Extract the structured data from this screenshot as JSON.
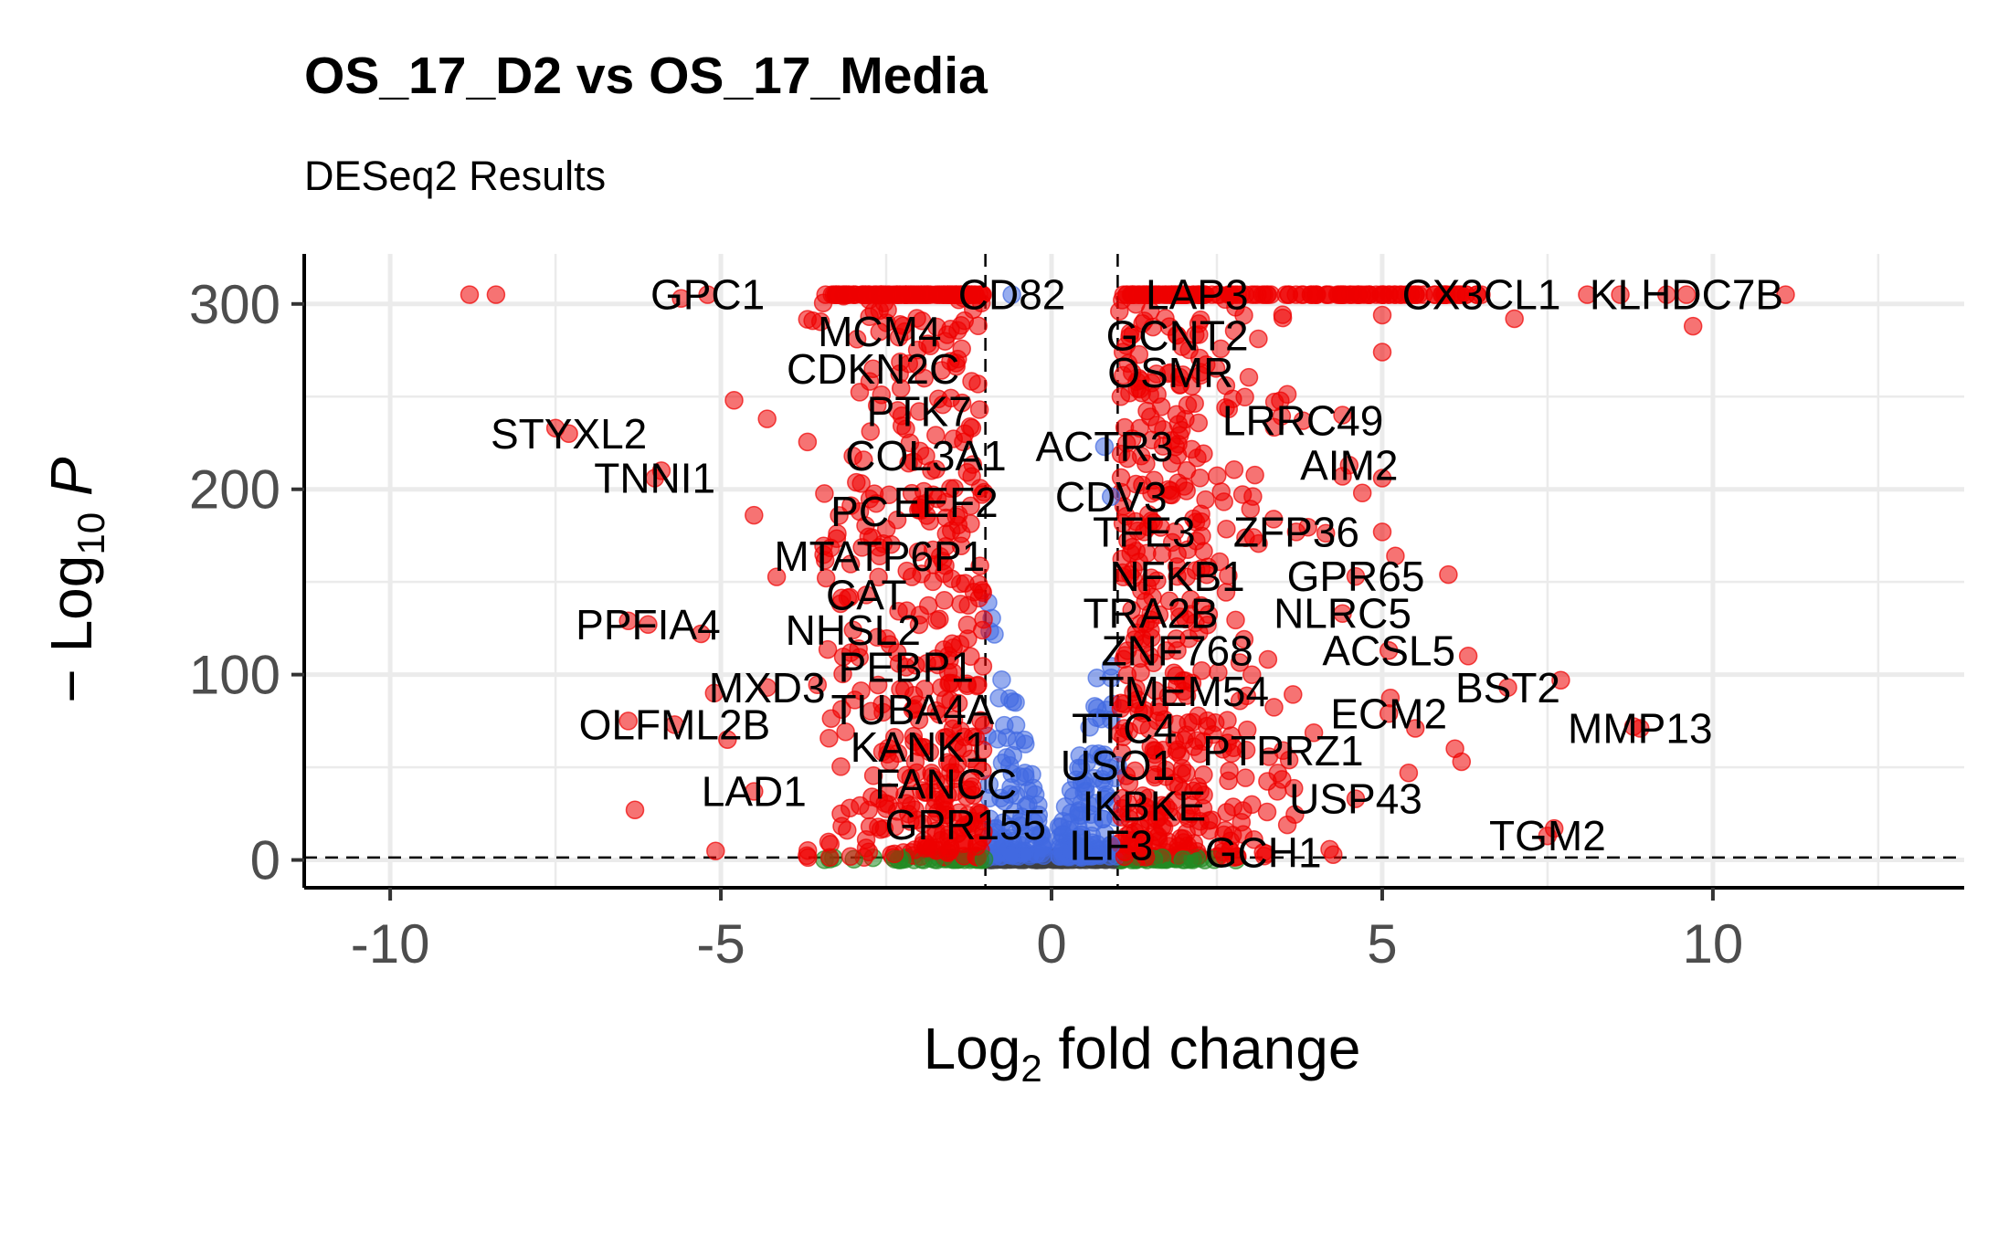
{
  "chart_data": {
    "type": "scatter",
    "title": "OS_17_D2 vs OS_17_Media",
    "subtitle": "DESeq2 Results",
    "xlabel": "Log2 fold change",
    "ylabel": "-Log10 P",
    "xlim": [
      -11.3,
      13.8
    ],
    "ylim": [
      -15,
      327
    ],
    "x_ticks": [
      "-10",
      "-5",
      "0",
      "5",
      "10"
    ],
    "y_ticks": [
      "0",
      "100",
      "200",
      "300"
    ],
    "grid": true,
    "fc_cutoff": 1,
    "p_cutoff_log10": 1.3,
    "colors": {
      "both": "#ee0000",
      "p_only": "#4169e1",
      "fc_only": "#228b22",
      "ns": "#404040"
    },
    "labeled_genes": [
      {
        "gene": "GPC1",
        "x": -5.2,
        "y": 305
      },
      {
        "gene": "CD82",
        "x": -0.6,
        "y": 305
      },
      {
        "gene": "LAP3",
        "x": 2.2,
        "y": 305
      },
      {
        "gene": "CX3CL1",
        "x": 6.5,
        "y": 305
      },
      {
        "gene": "KLHDC7B",
        "x": 9.6,
        "y": 305
      },
      {
        "gene": "MCM4",
        "x": -2.6,
        "y": 285
      },
      {
        "gene": "GCNT2",
        "x": 1.9,
        "y": 283
      },
      {
        "gene": "CDKN2C",
        "x": -2.7,
        "y": 265
      },
      {
        "gene": "OSMR",
        "x": 1.8,
        "y": 263
      },
      {
        "gene": "PTK7",
        "x": -2.0,
        "y": 242
      },
      {
        "gene": "LRRC49",
        "x": 3.8,
        "y": 237
      },
      {
        "gene": "STYXL2",
        "x": -7.3,
        "y": 230
      },
      {
        "gene": "ACTR3",
        "x": 0.8,
        "y": 223
      },
      {
        "gene": "COL3A1",
        "x": -1.9,
        "y": 218
      },
      {
        "gene": "AIM2",
        "x": 4.5,
        "y": 213
      },
      {
        "gene": "TNNI1",
        "x": -6.0,
        "y": 206
      },
      {
        "gene": "CDV3",
        "x": 0.9,
        "y": 196
      },
      {
        "gene": "EEF2",
        "x": -1.6,
        "y": 193
      },
      {
        "gene": "PC",
        "x": -2.9,
        "y": 188
      },
      {
        "gene": "TFE3",
        "x": 1.4,
        "y": 177
      },
      {
        "gene": "ZFP36",
        "x": 3.7,
        "y": 177
      },
      {
        "gene": "MTATP6P1",
        "x": -2.6,
        "y": 164
      },
      {
        "gene": "NFKB1",
        "x": 1.9,
        "y": 153
      },
      {
        "gene": "GPR65",
        "x": 4.6,
        "y": 153
      },
      {
        "gene": "CAT",
        "x": -2.8,
        "y": 143
      },
      {
        "gene": "TRA2B",
        "x": 1.5,
        "y": 133
      },
      {
        "gene": "NLRC5",
        "x": 4.4,
        "y": 133
      },
      {
        "gene": "PPFIA4",
        "x": -6.1,
        "y": 127
      },
      {
        "gene": "NHSL2",
        "x": -3.0,
        "y": 124
      },
      {
        "gene": "ZNF768",
        "x": 1.9,
        "y": 113
      },
      {
        "gene": "ACSL5",
        "x": 5.1,
        "y": 113
      },
      {
        "gene": "PEBP1",
        "x": -2.2,
        "y": 104
      },
      {
        "gene": "MXD3",
        "x": -4.3,
        "y": 93
      },
      {
        "gene": "TMEM54",
        "x": 2.0,
        "y": 91
      },
      {
        "gene": "BST2",
        "x": 6.9,
        "y": 93
      },
      {
        "gene": "TUBA4A",
        "x": -2.1,
        "y": 81
      },
      {
        "gene": "ECM2",
        "x": 5.1,
        "y": 79
      },
      {
        "gene": "OLFML2B",
        "x": -5.7,
        "y": 73
      },
      {
        "gene": "TTC4",
        "x": 1.1,
        "y": 71
      },
      {
        "gene": "MMP13",
        "x": 8.9,
        "y": 71
      },
      {
        "gene": "KANK1",
        "x": -2.0,
        "y": 61
      },
      {
        "gene": "PTPRZ1",
        "x": 3.5,
        "y": 59
      },
      {
        "gene": "USO1",
        "x": 1.0,
        "y": 51
      },
      {
        "gene": "FANCC",
        "x": -1.6,
        "y": 41
      },
      {
        "gene": "LAD1",
        "x": -4.5,
        "y": 37
      },
      {
        "gene": "USP43",
        "x": 4.6,
        "y": 33
      },
      {
        "gene": "IKBKE",
        "x": 1.4,
        "y": 29
      },
      {
        "gene": "GPR155",
        "x": -1.3,
        "y": 19
      },
      {
        "gene": "TGM2",
        "x": 7.5,
        "y": 13
      },
      {
        "gene": "ILF3",
        "x": 0.9,
        "y": 8
      },
      {
        "gene": "GCH1",
        "x": 3.2,
        "y": 4
      }
    ],
    "outlier_points": [
      {
        "x": -8.8,
        "y": 305
      },
      {
        "x": -8.4,
        "y": 305
      },
      {
        "x": -5.6,
        "y": 303
      },
      {
        "x": -7.5,
        "y": 233
      },
      {
        "x": -5.9,
        "y": 210
      },
      {
        "x": -6.4,
        "y": 129
      },
      {
        "x": -5.3,
        "y": 122
      },
      {
        "x": -6.4,
        "y": 75
      },
      {
        "x": -6.3,
        "y": 27
      },
      {
        "x": -4.8,
        "y": 248
      },
      {
        "x": -4.3,
        "y": 238
      },
      {
        "x": -4.5,
        "y": 186
      },
      {
        "x": -5.1,
        "y": 90
      },
      {
        "x": -4.9,
        "y": 65
      },
      {
        "x": 11.1,
        "y": 305
      },
      {
        "x": 9.7,
        "y": 288
      },
      {
        "x": 9.3,
        "y": 305
      },
      {
        "x": 8.6,
        "y": 305
      },
      {
        "x": 8.1,
        "y": 305
      },
      {
        "x": 7.0,
        "y": 292
      },
      {
        "x": 5.0,
        "y": 294
      },
      {
        "x": 5.0,
        "y": 274
      },
      {
        "x": 6.0,
        "y": 154
      },
      {
        "x": 6.3,
        "y": 110
      },
      {
        "x": 7.7,
        "y": 97
      },
      {
        "x": 8.8,
        "y": 72
      },
      {
        "x": 7.6,
        "y": 17
      },
      {
        "x": 6.2,
        "y": 53
      },
      {
        "x": 6.1,
        "y": 60
      },
      {
        "x": 5.5,
        "y": 71
      },
      {
        "x": 5.4,
        "y": 47
      },
      {
        "x": 5.0,
        "y": 177
      },
      {
        "x": 5.2,
        "y": 164
      },
      {
        "x": 4.4,
        "y": 207
      },
      {
        "x": 5.0,
        "y": 206
      },
      {
        "x": 4.7,
        "y": 198
      },
      {
        "x": 4.4,
        "y": 240
      }
    ]
  }
}
